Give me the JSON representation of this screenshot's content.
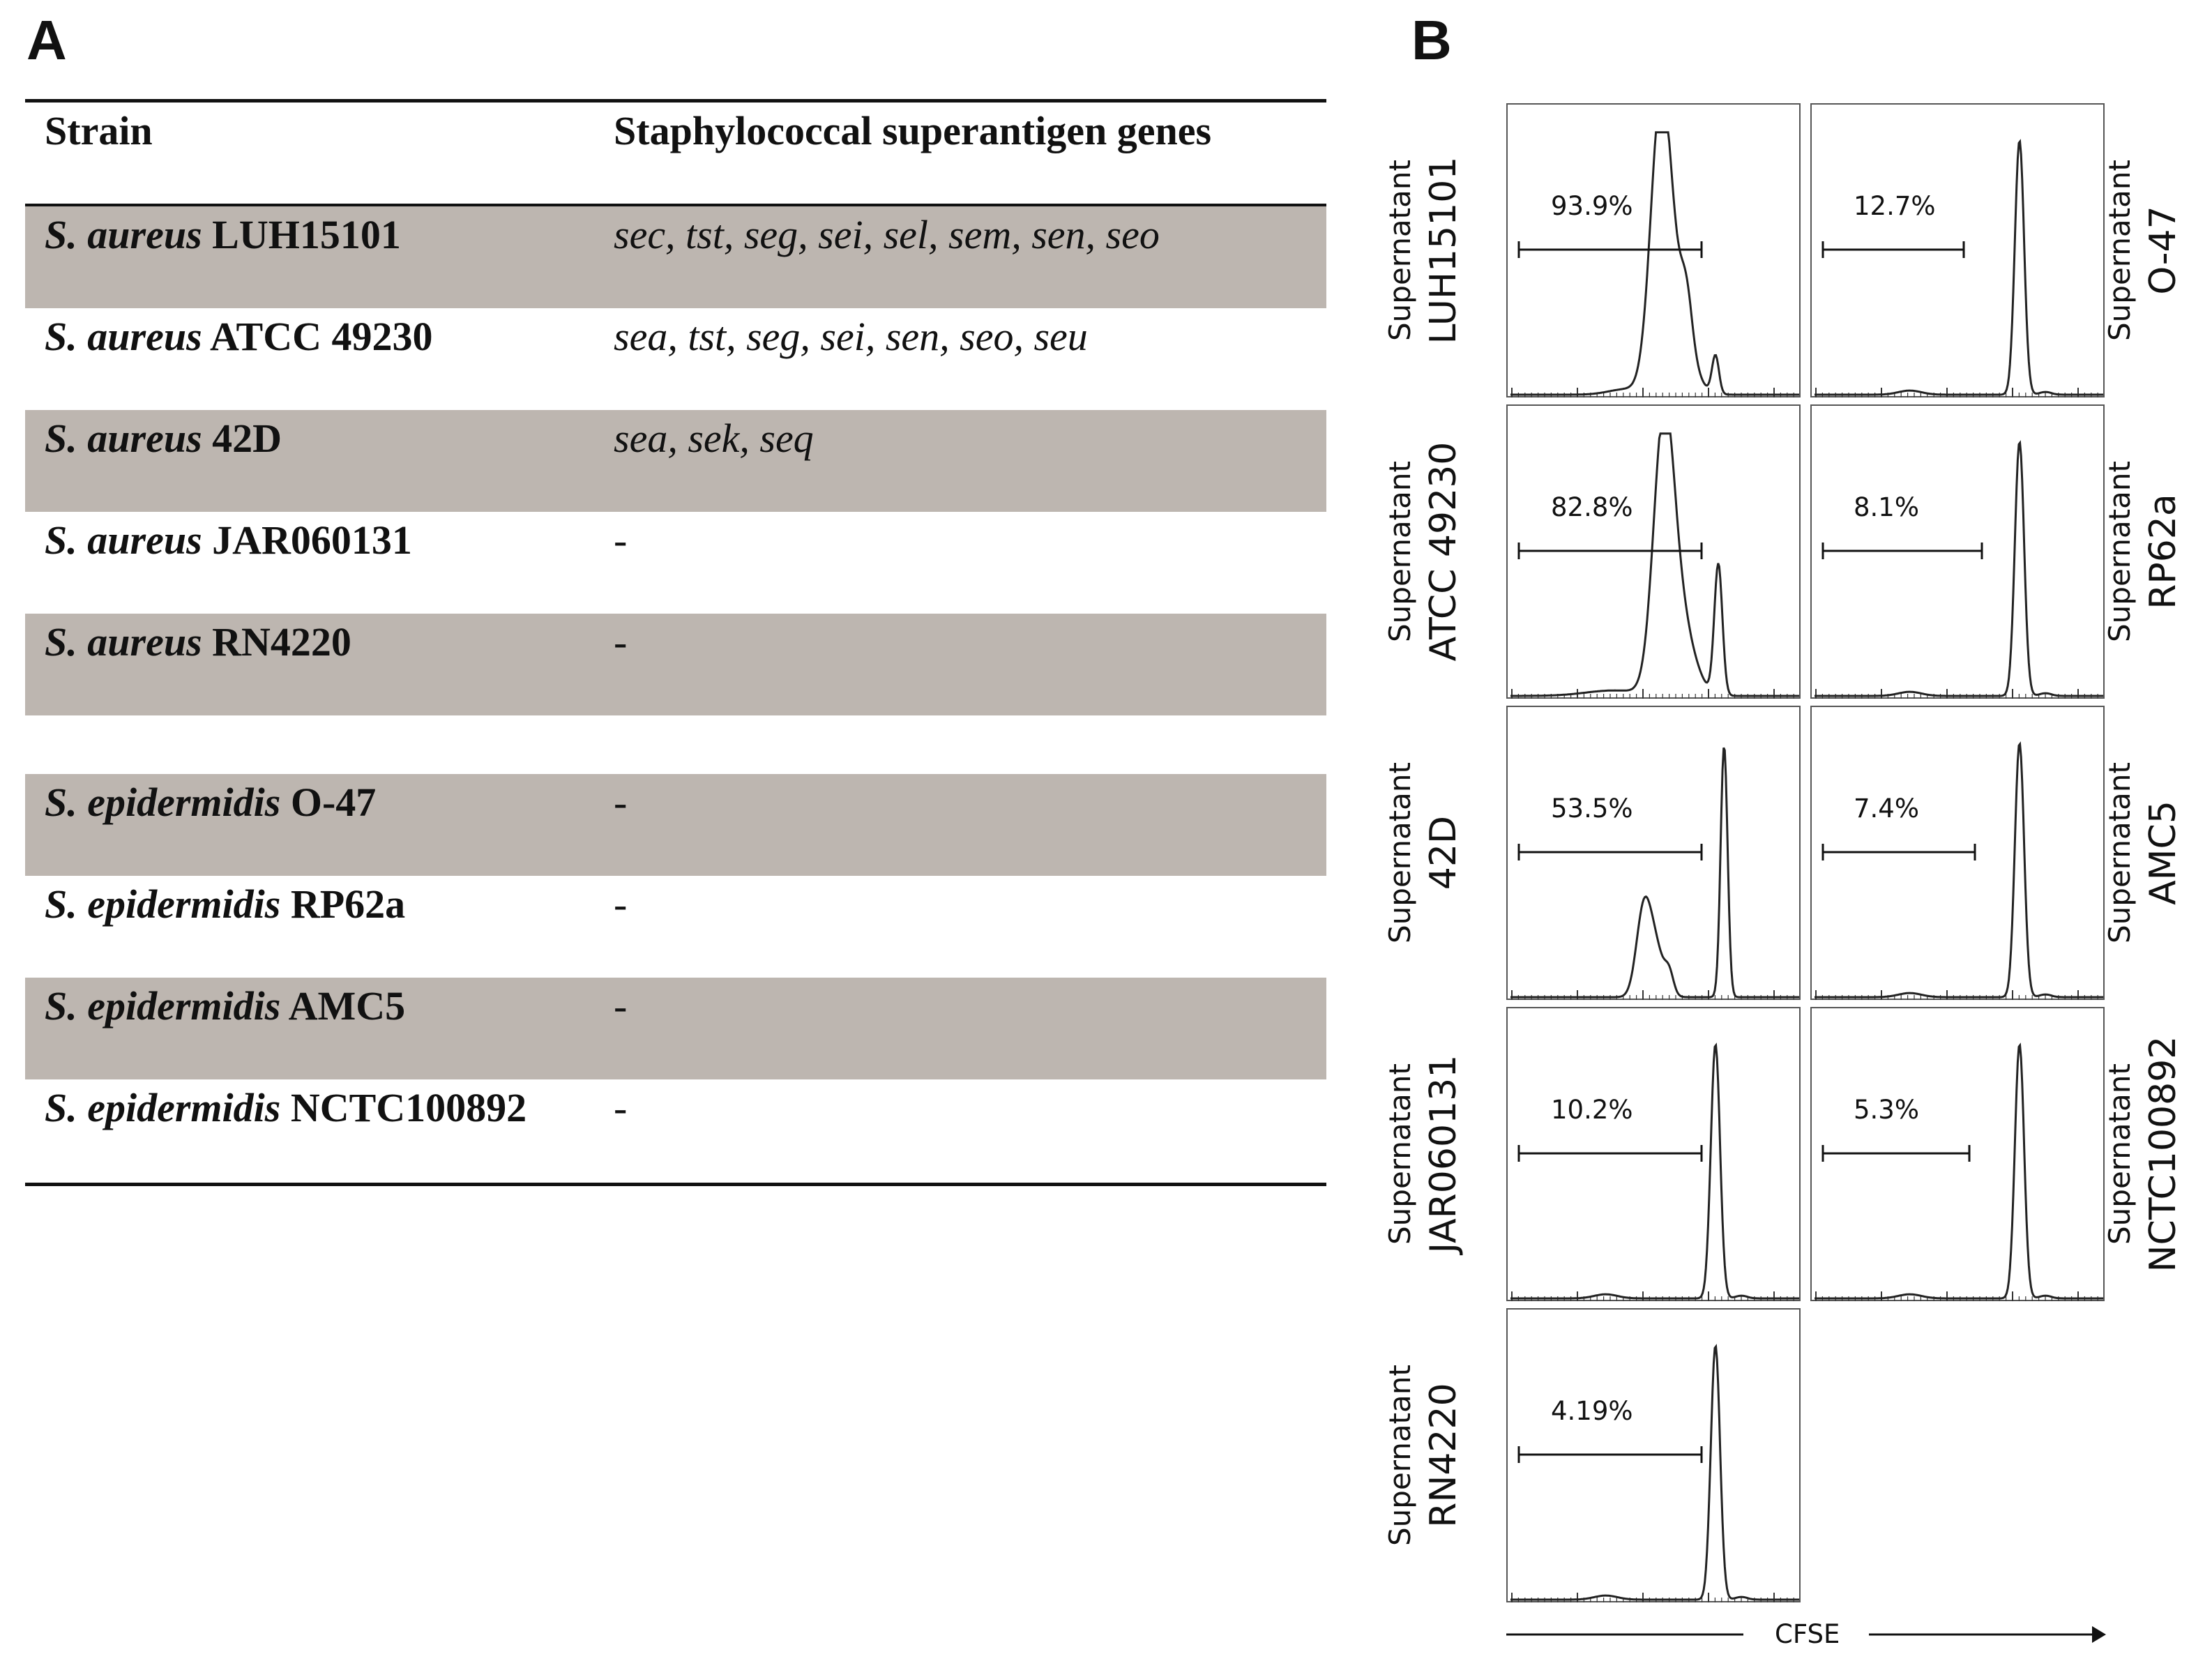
{
  "panel_a": {
    "letter": "A",
    "headers": {
      "strain": "Strain",
      "genes": "Staphylococcal superantigen genes"
    },
    "rows": [
      {
        "species": "S. aureus",
        "name": "LUH15101",
        "genes": "sec, tst, seg, sei, sel, sem, sen, seo"
      },
      {
        "species": "S. aureus",
        "name": "ATCC 49230",
        "genes": "sea, tst, seg, sei, sen, seo, seu"
      },
      {
        "species": "S. aureus",
        "name": "42D",
        "genes": "sea, sek, seq"
      },
      {
        "species": "S. aureus",
        "name": "JAR060131",
        "genes": "-"
      },
      {
        "species": "S. aureus",
        "name": "RN4220",
        "genes": "-"
      },
      {
        "species": "S. epidermidis",
        "name": "O-47",
        "genes": "-"
      },
      {
        "species": "S. epidermidis",
        "name": "RP62a",
        "genes": "-"
      },
      {
        "species": "S. epidermidis",
        "name": "AMC5",
        "genes": "-"
      },
      {
        "species": "S. epidermidis",
        "name": "NCTC100892",
        "genes": "-"
      }
    ]
  },
  "panel_b": {
    "letter": "B",
    "x_axis_label": "CFSE",
    "label_prefix": "Supernatant"
  },
  "chart_data": {
    "type": "histogram",
    "title": "",
    "xlabel": "CFSE",
    "ylabel": "",
    "panels": [
      {
        "strain": "LUH15101",
        "percent": "93.9%",
        "gate_fraction": 0.939,
        "profile": "high"
      },
      {
        "strain": "ATCC 49230",
        "percent": "82.8%",
        "gate_fraction": 0.828,
        "profile": "high-2"
      },
      {
        "strain": "42D",
        "percent": "53.5%",
        "gate_fraction": 0.535,
        "profile": "mid"
      },
      {
        "strain": "JAR060131",
        "percent": "10.2%",
        "gate_fraction": 0.102,
        "profile": "low"
      },
      {
        "strain": "RN4220",
        "percent": "4.19%",
        "gate_fraction": 0.0419,
        "profile": "low"
      },
      {
        "strain": "O-47",
        "percent": "12.7%",
        "gate_fraction": 0.127,
        "profile": "low"
      },
      {
        "strain": "RP62a",
        "percent": "8.1%",
        "gate_fraction": 0.081,
        "profile": "low"
      },
      {
        "strain": "AMC5",
        "percent": "7.4%",
        "gate_fraction": 0.074,
        "profile": "low"
      },
      {
        "strain": "NCTC100892",
        "percent": "5.3%",
        "gate_fraction": 0.053,
        "profile": "low"
      }
    ]
  }
}
